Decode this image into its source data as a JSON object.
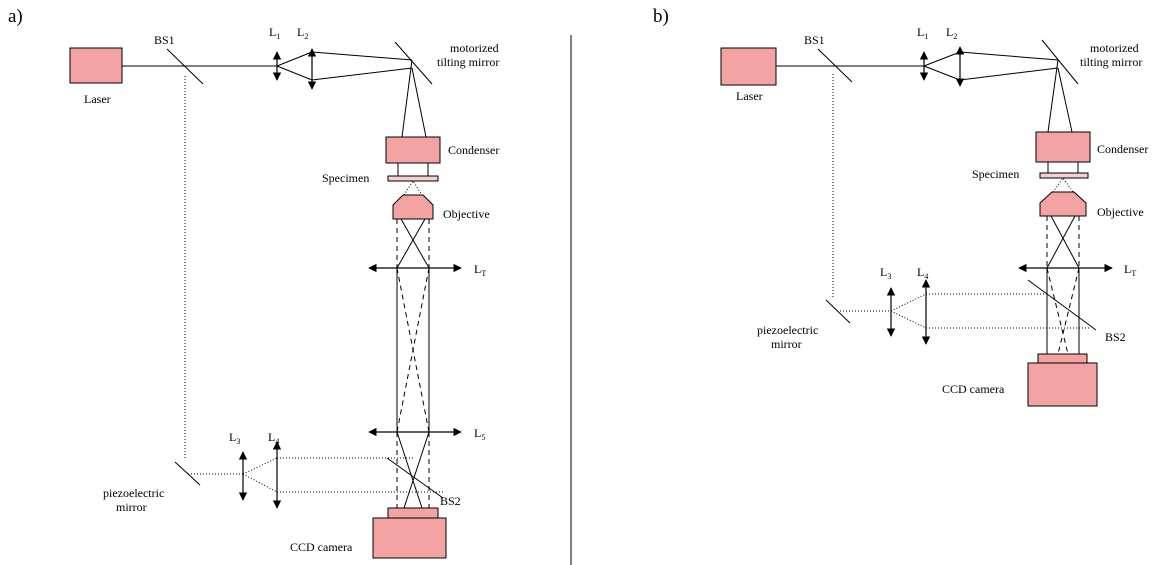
{
  "panels": {
    "a": {
      "tag": "a)",
      "laser": "Laser",
      "bs1": "BS1",
      "l1": "L",
      "l1_sub": "1",
      "l2": "L",
      "l2_sub": "2",
      "tilt_mirror_1": "motorized",
      "tilt_mirror_2": "tilting mirror",
      "condenser": "Condenser",
      "specimen": "Specimen",
      "objective": "Objective",
      "lt": "L",
      "lt_sub": "T",
      "l5": "L",
      "l5_sub": "5",
      "l3": "L",
      "l3_sub": "3",
      "l4": "L",
      "l4_sub": "4",
      "piezo_1": "piezoelectric",
      "piezo_2": "mirror",
      "bs2": "BS2",
      "ccd": "CCD camera"
    },
    "b": {
      "tag": "b)",
      "laser": "Laser",
      "bs1": "BS1",
      "l1": "L",
      "l1_sub": "1",
      "l2": "L",
      "l2_sub": "2",
      "tilt_mirror_1": "motorized",
      "tilt_mirror_2": "tilting mirror",
      "condenser": "Condenser",
      "specimen": "Specimen",
      "objective": "Objective",
      "lt": "L",
      "lt_sub": "T",
      "l3": "L",
      "l3_sub": "3",
      "l4": "L",
      "l4_sub": "4",
      "piezo_1": "piezoelectric",
      "piezo_2": "mirror",
      "bs2": "BS2",
      "ccd": "CCD camera"
    }
  },
  "colors": {
    "component_fill": "#f4a3a3",
    "line": "#000000"
  }
}
